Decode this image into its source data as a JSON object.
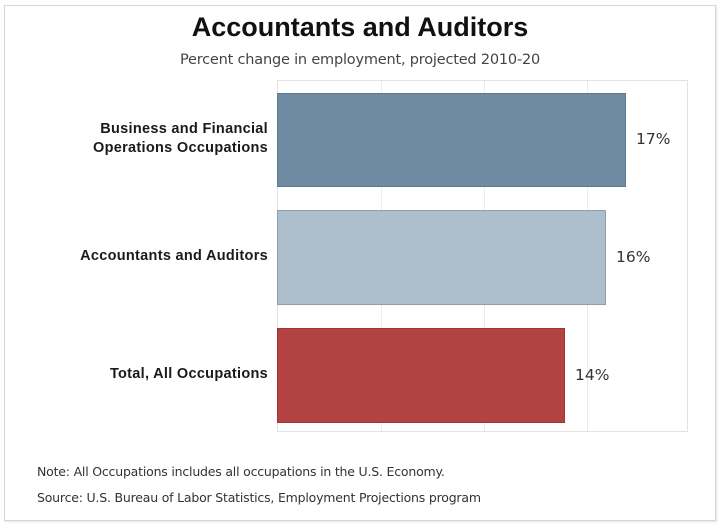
{
  "header": {
    "title": "Accountants and Auditors",
    "subtitle": "Percent change in employment, projected 2010-20"
  },
  "bars": [
    {
      "label_line1": "Business and Financial",
      "label_line2": "Operations Occupations",
      "value": 17,
      "value_label": "17%",
      "color": "#6f8ba3",
      "border": "#5d7890"
    },
    {
      "label_line1": "Accountants and Auditors",
      "label_line2": "",
      "value": 16,
      "value_label": "16%",
      "color": "#adbfcc",
      "border": "#8d9fac"
    },
    {
      "label_line1": "Total, All Occupations",
      "label_line2": "",
      "value": 14,
      "value_label": "14%",
      "color": "#b34343",
      "border": "#9e3535"
    }
  ],
  "footer": {
    "note": "Note: All Occupations includes all occupations in the U.S. Economy.",
    "source": "Source: U.S. Bureau of Labor Statistics, Employment Projections program"
  },
  "chart_data": {
    "type": "bar",
    "orientation": "horizontal",
    "title": "Accountants and Auditors",
    "subtitle": "Percent change in employment, projected 2010-20",
    "categories": [
      "Business and Financial Operations Occupations",
      "Accountants and Auditors",
      "Total, All Occupations"
    ],
    "values": [
      17,
      16,
      14
    ],
    "data_labels": [
      "17%",
      "16%",
      "14%"
    ],
    "colors": [
      "#6f8ba3",
      "#adbfcc",
      "#b34343"
    ],
    "xlabel": "",
    "ylabel": "",
    "xlim": [
      0,
      20
    ],
    "grid": true,
    "gridlines_at": [
      5,
      10,
      15
    ],
    "axis_tick_labels_shown": false,
    "legend": null,
    "annotations": [
      "Note: All Occupations includes all occupations in the U.S. Economy.",
      "Source: U.S. Bureau of Labor Statistics, Employment Projections program"
    ]
  }
}
